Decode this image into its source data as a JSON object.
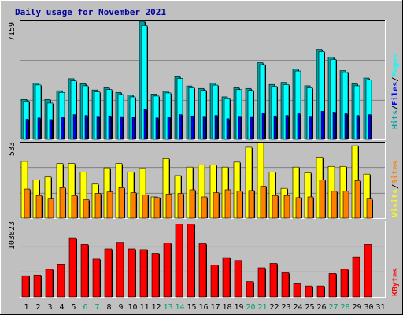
{
  "title": "Daily usage for November 2021",
  "colors": {
    "background": "#c0c0c0",
    "panel": "#c0c0c0",
    "grid": "#808080",
    "hits": "#00ffff",
    "files": "#0000ff",
    "pages": "#00a0a0",
    "visits": "#ffff00",
    "sites": "#ff8000",
    "kbytes": "#ff0000",
    "weekend_label": "#00a060",
    "weekday_label": "#000000",
    "title": "#0000a0"
  },
  "legend_top": [
    {
      "text": "Hits",
      "color": "#00a0a0"
    },
    {
      "text": "/",
      "color": "#000000"
    },
    {
      "text": "Files",
      "color": "#0000ff"
    },
    {
      "text": "/",
      "color": "#000000"
    },
    {
      "text": "Pages",
      "color": "#00ffff"
    }
  ],
  "legend_mid": [
    {
      "text": "Visits",
      "color": "#ffff00"
    },
    {
      "text": "/",
      "color": "#000000"
    },
    {
      "text": "Sites",
      "color": "#ff8000"
    }
  ],
  "legend_bottom": [
    {
      "text": "KBytes",
      "color": "#ff0000"
    }
  ],
  "chart_data": [
    {
      "type": "bar",
      "title": "Daily usage for November 2021",
      "categories": [
        "1",
        "2",
        "3",
        "4",
        "5",
        "6",
        "7",
        "8",
        "9",
        "10",
        "11",
        "12",
        "13",
        "14",
        "15",
        "16",
        "17",
        "18",
        "19",
        "20",
        "21",
        "22",
        "23",
        "24",
        "25",
        "26",
        "27",
        "28",
        "29",
        "30",
        "31"
      ],
      "weekend_days": [
        "6",
        "7",
        "13",
        "14",
        "20",
        "21",
        "27",
        "28"
      ],
      "ylabel": "7159",
      "ylim": [
        0,
        7159
      ],
      "series": [
        {
          "name": "Hits",
          "values": [
            2420,
            3410,
            2420,
            2950,
            3680,
            3370,
            3000,
            3130,
            2850,
            2700,
            7159,
            2750,
            2920,
            3800,
            3240,
            3090,
            3420,
            2580,
            3130,
            3090,
            4650,
            3330,
            3450,
            4270,
            3250,
            5460,
            4980,
            4170,
            3370,
            3720,
            0
          ]
        },
        {
          "name": "Files",
          "values": [
            2320,
            3300,
            2200,
            2850,
            3550,
            3250,
            2880,
            3030,
            2720,
            2580,
            6900,
            2630,
            2820,
            3700,
            3130,
            2980,
            3290,
            2470,
            3020,
            2970,
            4530,
            3210,
            3320,
            4150,
            3130,
            5330,
            4850,
            4060,
            3250,
            3610,
            0
          ]
        },
        {
          "name": "Pages",
          "values": [
            1220,
            1300,
            1200,
            1350,
            1500,
            1450,
            1400,
            1420,
            1380,
            1320,
            1800,
            1300,
            1350,
            1500,
            1420,
            1400,
            1450,
            1250,
            1400,
            1380,
            1600,
            1420,
            1450,
            1550,
            1400,
            1700,
            1650,
            1550,
            1450,
            1500,
            0
          ]
        }
      ]
    },
    {
      "type": "bar",
      "categories": [
        "1",
        "2",
        "3",
        "4",
        "5",
        "6",
        "7",
        "8",
        "9",
        "10",
        "11",
        "12",
        "13",
        "14",
        "15",
        "16",
        "17",
        "18",
        "19",
        "20",
        "21",
        "22",
        "23",
        "24",
        "25",
        "26",
        "27",
        "28",
        "29",
        "30",
        "31"
      ],
      "ylabel": "533",
      "ylim": [
        0,
        533
      ],
      "series": [
        {
          "name": "Visits",
          "values": [
            400,
            270,
            290,
            385,
            385,
            325,
            240,
            355,
            385,
            325,
            350,
            150,
            420,
            300,
            360,
            375,
            375,
            360,
            395,
            500,
            530,
            325,
            210,
            360,
            320,
            430,
            365,
            365,
            510,
            310,
            0
          ]
        },
        {
          "name": "Sites",
          "values": [
            205,
            160,
            135,
            215,
            160,
            130,
            175,
            185,
            215,
            180,
            165,
            145,
            170,
            175,
            200,
            150,
            180,
            200,
            190,
            195,
            225,
            160,
            160,
            145,
            150,
            270,
            190,
            190,
            265,
            135,
            0
          ]
        }
      ]
    },
    {
      "type": "bar",
      "categories": [
        "1",
        "2",
        "3",
        "4",
        "5",
        "6",
        "7",
        "8",
        "9",
        "10",
        "11",
        "12",
        "13",
        "14",
        "15",
        "16",
        "17",
        "18",
        "19",
        "20",
        "21",
        "22",
        "23",
        "24",
        "25",
        "26",
        "27",
        "28",
        "29",
        "30",
        "31"
      ],
      "ylabel": "103823",
      "ylim": [
        0,
        103823
      ],
      "series": [
        {
          "name": "KBytes",
          "values": [
            29000,
            30000,
            38000,
            45000,
            81000,
            72000,
            52000,
            66000,
            75000,
            66000,
            65000,
            60000,
            74000,
            100000,
            100000,
            73000,
            44000,
            54000,
            50000,
            21000,
            40000,
            46000,
            33000,
            19000,
            15000,
            15000,
            32000,
            38000,
            55000,
            72000,
            0
          ]
        }
      ]
    }
  ]
}
